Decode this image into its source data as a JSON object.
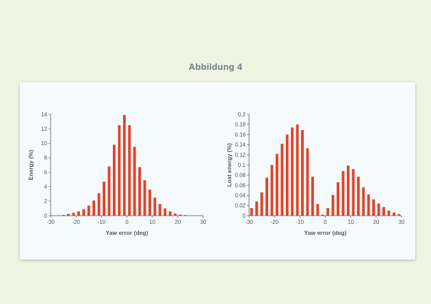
{
  "page": {
    "figure_title": "Abbildung 4"
  },
  "colors": {
    "bar": "#e0442a",
    "axis": "#555555",
    "background": "#eef4e2",
    "card": "#f5fafd"
  },
  "chart_data": [
    {
      "type": "bar",
      "title": "",
      "xlabel": "Yaw error (deg)",
      "ylabel": "Energy (%)",
      "xlim": [
        -30,
        30
      ],
      "ylim": [
        0,
        14
      ],
      "xticks": [
        "-30",
        "-20",
        "-10",
        "0",
        "10",
        "20",
        "30"
      ],
      "yticks": [
        "0",
        "2",
        "4",
        "6",
        "8",
        "10",
        "12",
        "14"
      ],
      "grid": false,
      "x": [
        -29,
        -27,
        -25,
        -23,
        -21,
        -19,
        -17,
        -15,
        -13,
        -11,
        -9,
        -7,
        -5,
        -3,
        -1,
        1,
        3,
        5,
        7,
        9,
        11,
        13,
        15,
        17,
        19,
        21,
        23,
        25,
        27,
        29
      ],
      "values": [
        0.02,
        0.05,
        0.1,
        0.25,
        0.4,
        0.6,
        0.9,
        1.4,
        2.1,
        3.1,
        4.7,
        6.8,
        9.8,
        12.5,
        13.9,
        12.5,
        9.5,
        6.7,
        4.9,
        3.6,
        2.5,
        1.6,
        1.0,
        0.6,
        0.3,
        0.15,
        0.08,
        0.04,
        0.02,
        0.01
      ]
    },
    {
      "type": "bar",
      "title": "",
      "xlabel": "Yaw error (deg)",
      "ylabel": "Lost energy (%)",
      "xlim": [
        -30,
        30
      ],
      "ylim": [
        0,
        0.2
      ],
      "xticks": [
        "-30",
        "-20",
        "-10",
        "0",
        "10",
        "20",
        "30"
      ],
      "yticks": [
        "0",
        "0.02",
        "0.04",
        "0.06",
        "0.08",
        "0.1",
        "0.12",
        "0.14",
        "0.16",
        "0.18",
        "0.2"
      ],
      "grid": false,
      "x": [
        -29,
        -27,
        -25,
        -23,
        -21,
        -19,
        -17,
        -15,
        -13,
        -11,
        -9,
        -7,
        -5,
        -3,
        -1,
        1,
        3,
        5,
        7,
        9,
        11,
        13,
        15,
        17,
        19,
        21,
        23,
        25,
        27,
        29
      ],
      "values": [
        0.015,
        0.028,
        0.046,
        0.075,
        0.1,
        0.122,
        0.142,
        0.16,
        0.174,
        0.18,
        0.169,
        0.133,
        0.077,
        0.023,
        0.002,
        0.015,
        0.041,
        0.066,
        0.088,
        0.099,
        0.092,
        0.077,
        0.056,
        0.042,
        0.032,
        0.024,
        0.017,
        0.01,
        0.006,
        0.003
      ]
    }
  ]
}
